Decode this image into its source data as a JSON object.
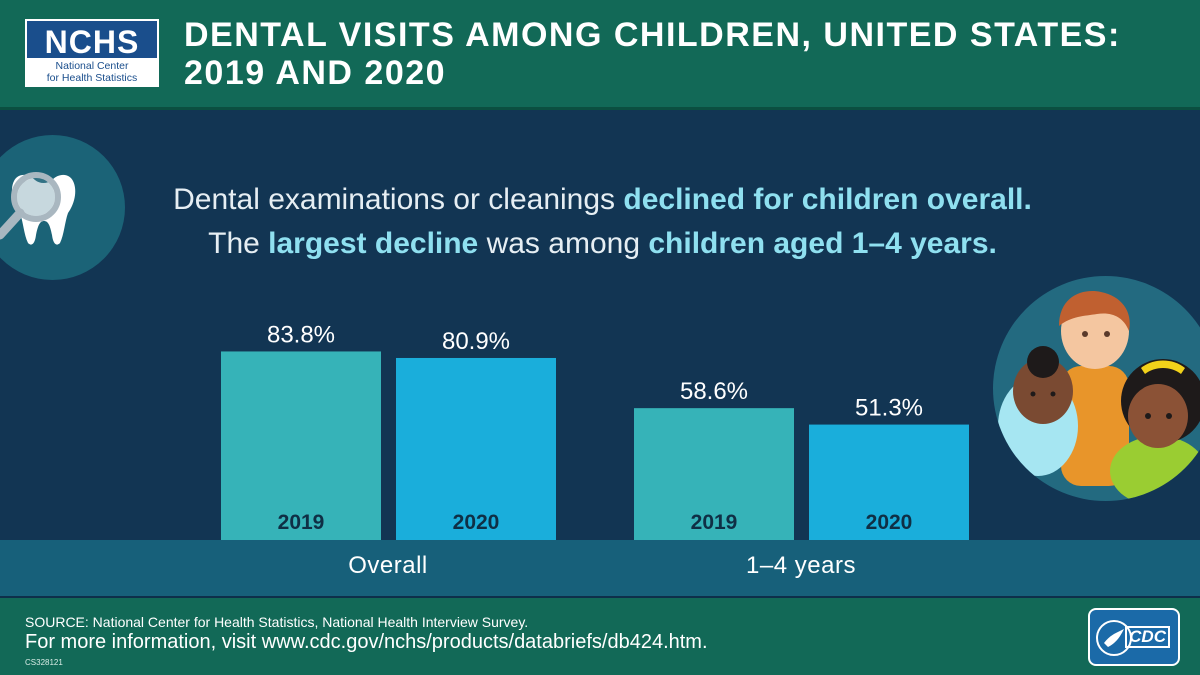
{
  "header": {
    "logo_abbr": "NCHS",
    "logo_name_line1": "National Center",
    "logo_name_line2": "for Health Statistics",
    "title_line1": "DENTAL VISITS AMONG CHILDREN, UNITED STATES:",
    "title_line2": "2019 AND 2020"
  },
  "headline": {
    "line1_a": "Dental examinations or cleanings ",
    "line1_b": "declined for children overall.",
    "line2_a": "The ",
    "line2_b": "largest decline",
    "line2_c": " was among ",
    "line2_d": "children aged 1–4 years."
  },
  "chart_data": {
    "type": "bar",
    "categories": [
      "Overall",
      "1–4 years"
    ],
    "series": [
      {
        "name": "2019",
        "values": [
          83.8,
          58.6
        ],
        "labels": [
          "83.8%",
          "58.6%"
        ]
      },
      {
        "name": "2020",
        "values": [
          80.9,
          51.3
        ],
        "labels": [
          "80.9%",
          "51.3%"
        ]
      }
    ],
    "value_suffix": "%",
    "ylim": [
      0,
      100
    ],
    "grid": false,
    "colors": {
      "2019": "#36b3b8",
      "2020": "#1aaedb"
    }
  },
  "footer": {
    "source": "SOURCE: National Center for Health Statistics, National Health Interview Survey.",
    "more_info": "For more information, visit www.cdc.gov/nchs/products/databriefs/db424.htm.",
    "code": "CS328121",
    "cdc_logo": "CDC"
  },
  "icons": {
    "tooth": "tooth-magnifier-icon",
    "children": "children-illustration",
    "hhs": "hhs-eagle-icon"
  }
}
